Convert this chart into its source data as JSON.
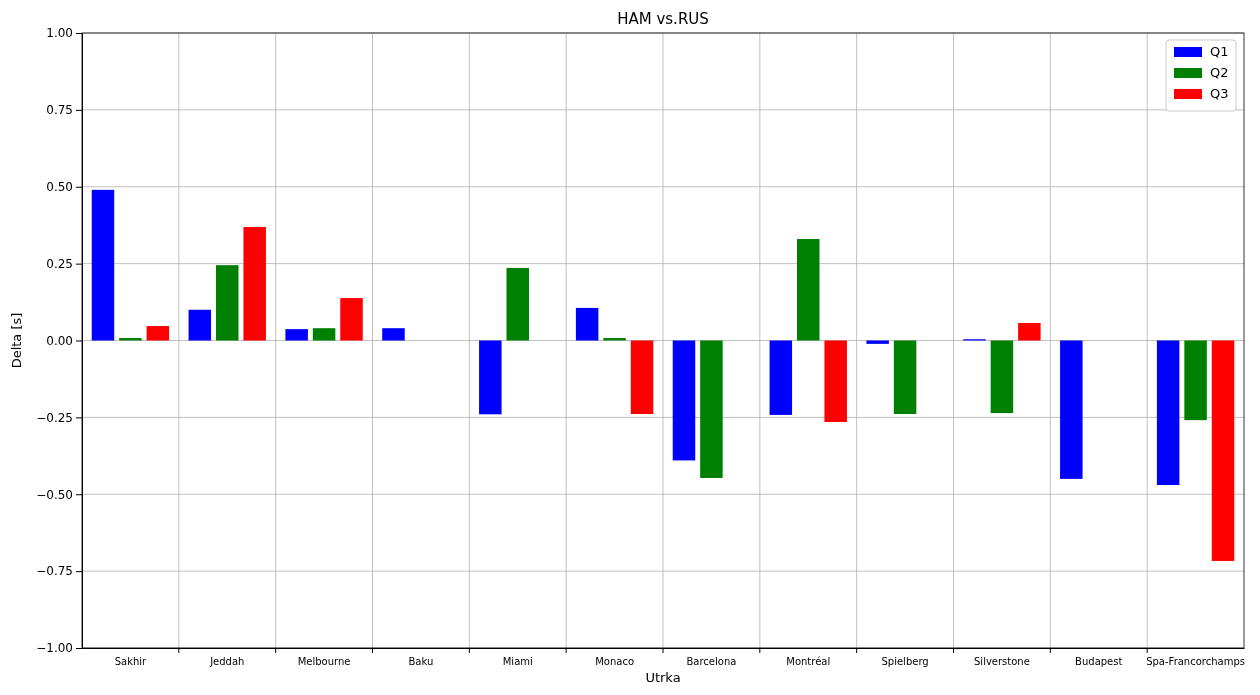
{
  "chart_data": {
    "type": "bar",
    "title": "HAM vs.RUS",
    "xlabel": "Utrka",
    "ylabel": "Delta [s]",
    "categories": [
      "Sakhir",
      "Jeddah",
      "Melbourne",
      "Baku",
      "Miami",
      "Monaco",
      "Barcelona",
      "Montréal",
      "Spielberg",
      "Silverstone",
      "Budapest",
      "Spa-Francorchamps"
    ],
    "series": [
      {
        "name": "Q1",
        "color": "#0000ff",
        "values": [
          0.49,
          0.1,
          0.037,
          0.04,
          -0.24,
          0.106,
          -0.39,
          -0.242,
          -0.011,
          0.004,
          -0.45,
          -0.47
        ]
      },
      {
        "name": "Q2",
        "color": "#008000",
        "values": [
          0.008,
          0.245,
          0.04,
          null,
          0.236,
          0.008,
          -0.447,
          0.33,
          -0.239,
          -0.236,
          null,
          -0.259
        ]
      },
      {
        "name": "Q3",
        "color": "#ff0000",
        "values": [
          0.047,
          0.369,
          0.138,
          null,
          null,
          -0.239,
          null,
          -0.265,
          null,
          0.057,
          null,
          -0.717
        ]
      }
    ],
    "ylim": [
      -1,
      1
    ],
    "yticks": [
      {
        "value": -1,
        "label": "−1.00"
      },
      {
        "value": -0.75,
        "label": "−0.75"
      },
      {
        "value": -0.5,
        "label": "−0.50"
      },
      {
        "value": -0.25,
        "label": "−0.25"
      },
      {
        "value": 0,
        "label": "0.00"
      },
      {
        "value": 0.25,
        "label": "0.25"
      },
      {
        "value": 0.5,
        "label": "0.50"
      },
      {
        "value": 0.75,
        "label": "0.75"
      },
      {
        "value": 1,
        "label": "1.00"
      }
    ],
    "grid": true,
    "legend": "top right"
  }
}
